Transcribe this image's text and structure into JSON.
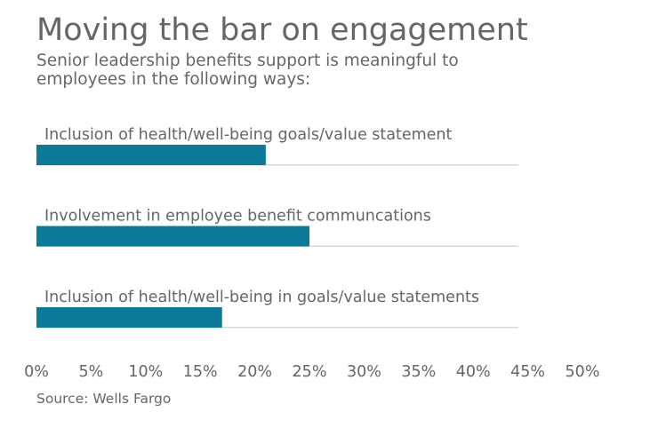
{
  "title": "Moving the bar on engagement",
  "subtitle": "Senior leadership benefits support is meaningful to employees in the following ways:",
  "source": "Source: Wells Fargo",
  "chart_data": {
    "type": "bar",
    "orientation": "horizontal",
    "categories": [
      "Inclusion of health/well-being goals/value statement",
      "Involvement in employee benefit communcations",
      "Inclusion of health/well-being in goals/value statements"
    ],
    "values": [
      21,
      25,
      17
    ],
    "unit": "%",
    "xlim": [
      0,
      50
    ],
    "tick_labels": [
      "0%",
      "5%",
      "10%",
      "15%",
      "20%",
      "25%",
      "30%",
      "35%",
      "40%",
      "45%",
      "50%"
    ],
    "bar_color": "#0b7a99",
    "track_color": "#d9d9d9",
    "grid": false
  }
}
